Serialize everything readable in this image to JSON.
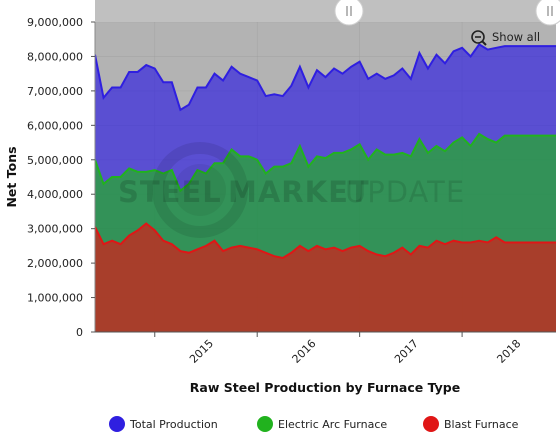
{
  "chart_data": {
    "type": "area",
    "title": "",
    "xlabel": "Raw Steel Production by Furnace Type",
    "ylabel": "Net Tons",
    "ylim": [
      0,
      9000000
    ],
    "yticks": [
      "0",
      "1,000,000",
      "2,000,000",
      "3,000,000",
      "4,000,000",
      "5,000,000",
      "6,000,000",
      "7,000,000",
      "8,000,000",
      "9,000,000"
    ],
    "xticks": [
      "2015",
      "2016",
      "2017",
      "2018"
    ],
    "xrange_months": [
      "2014-06",
      "2018-12"
    ],
    "grid": true,
    "legend_position": "bottom",
    "x": [
      "2014-06",
      "2014-07",
      "2014-08",
      "2014-09",
      "2014-10",
      "2014-11",
      "2014-12",
      "2015-01",
      "2015-02",
      "2015-03",
      "2015-04",
      "2015-05",
      "2015-06",
      "2015-07",
      "2015-08",
      "2015-09",
      "2015-10",
      "2015-11",
      "2015-12",
      "2016-01",
      "2016-02",
      "2016-03",
      "2016-04",
      "2016-05",
      "2016-06",
      "2016-07",
      "2016-08",
      "2016-09",
      "2016-10",
      "2016-11",
      "2016-12",
      "2017-01",
      "2017-02",
      "2017-03",
      "2017-04",
      "2017-05",
      "2017-06",
      "2017-07",
      "2017-08",
      "2017-09",
      "2017-10",
      "2017-11",
      "2017-12",
      "2018-01",
      "2018-02",
      "2018-03",
      "2018-04",
      "2018-05",
      "2018-06",
      "2018-07",
      "2018-08",
      "2018-09",
      "2018-10",
      "2018-11",
      "2018-12"
    ],
    "series": [
      {
        "name": "Total Production",
        "color": "#2f1fe0",
        "values": [
          8050000,
          6800000,
          7100000,
          7100000,
          7550000,
          7550000,
          7750000,
          7650000,
          7250000,
          7250000,
          6450000,
          6600000,
          7100000,
          7100000,
          7500000,
          7300000,
          7700000,
          7500000,
          7400000,
          7300000,
          6850000,
          6900000,
          6850000,
          7150000,
          7700000,
          7100000,
          7600000,
          7400000,
          7650000,
          7500000,
          7700000,
          7850000,
          7350000,
          7500000,
          7350000,
          7450000,
          7650000,
          7350000,
          8100000,
          7650000,
          8050000,
          7800000,
          8150000,
          8250000,
          8000000,
          8350000,
          8200000,
          8250000,
          8300000,
          8300000,
          8300000,
          8300000,
          8300000,
          8300000,
          8300000
        ]
      },
      {
        "name": "Electric Arc Furnace",
        "color": "#21b21e",
        "values": [
          5000000,
          4300000,
          4500000,
          4500000,
          4750000,
          4650000,
          4650000,
          4700000,
          4600000,
          4700000,
          4100000,
          4300000,
          4700000,
          4600000,
          4900000,
          4900000,
          5300000,
          5100000,
          5100000,
          5000000,
          4600000,
          4800000,
          4800000,
          4900000,
          5400000,
          4800000,
          5100000,
          5050000,
          5200000,
          5200000,
          5300000,
          5450000,
          5000000,
          5300000,
          5150000,
          5150000,
          5200000,
          5100000,
          5600000,
          5200000,
          5400000,
          5250000,
          5500000,
          5650000,
          5400000,
          5750000,
          5600000,
          5500000,
          5700000,
          5700000,
          5700000,
          5700000,
          5700000,
          5700000,
          5700000
        ]
      },
      {
        "name": "Blast Furnace",
        "color": "#e01616",
        "values": [
          3050000,
          2550000,
          2650000,
          2550000,
          2800000,
          2950000,
          3150000,
          2950000,
          2650000,
          2550000,
          2350000,
          2300000,
          2400000,
          2500000,
          2650000,
          2350000,
          2450000,
          2500000,
          2450000,
          2400000,
          2300000,
          2200000,
          2150000,
          2300000,
          2500000,
          2350000,
          2500000,
          2400000,
          2450000,
          2350000,
          2450000,
          2500000,
          2350000,
          2250000,
          2200000,
          2300000,
          2450000,
          2250000,
          2500000,
          2450000,
          2650000,
          2550000,
          2650000,
          2600000,
          2600000,
          2650000,
          2600000,
          2750000,
          2600000,
          2600000,
          2600000,
          2600000,
          2600000,
          2600000,
          2600000
        ]
      }
    ]
  },
  "controls": {
    "reset_zoom_label": "Show all",
    "scroll_handle_icon": "grip-lines-icon",
    "zoom_icon": "zoom-out-icon"
  },
  "watermark": {
    "word1": "STEEL",
    "word2": "MARKET",
    "word3": "UPDATE"
  }
}
